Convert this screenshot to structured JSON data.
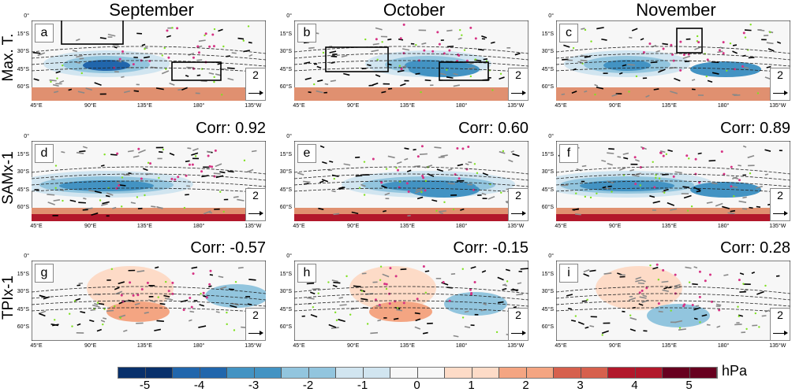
{
  "chart_data": {
    "type": "heatmap",
    "title": "",
    "columns": [
      "September",
      "October",
      "November"
    ],
    "rows": [
      "Max. T.",
      "SAMx-1",
      "TPIx-1"
    ],
    "lat_ticks": [
      "0°",
      "15°S",
      "30°S",
      "45°S",
      "60°S"
    ],
    "lon_ticks": [
      "45°E",
      "90°E",
      "135°E",
      "180°",
      "135°W"
    ],
    "panels": [
      {
        "label": "a",
        "row": "Max. T.",
        "column": "September",
        "corr": null
      },
      {
        "label": "b",
        "row": "Max. T.",
        "column": "October",
        "corr": null
      },
      {
        "label": "c",
        "row": "Max. T.",
        "column": "November",
        "corr": null
      },
      {
        "label": "d",
        "row": "SAMx-1",
        "column": "September",
        "corr": "Corr:  0.92"
      },
      {
        "label": "e",
        "row": "SAMx-1",
        "column": "October",
        "corr": "Corr:  0.60"
      },
      {
        "label": "f",
        "row": "SAMx-1",
        "column": "November",
        "corr": "Corr:  0.89"
      },
      {
        "label": "g",
        "row": "TPIx-1",
        "column": "September",
        "corr": "Corr: -0.57"
      },
      {
        "label": "h",
        "row": "TPIx-1",
        "column": "October",
        "corr": "Corr: -0.15"
      },
      {
        "label": "i",
        "row": "TPIx-1",
        "column": "November",
        "corr": "Corr:  0.28"
      }
    ],
    "reference_vector": "2",
    "colorbar": {
      "ticks": [
        "-5",
        "-4",
        "-3",
        "-2",
        "-1",
        "0",
        "1",
        "2",
        "3",
        "4",
        "5"
      ],
      "unit": "hPa",
      "colors": [
        "#08306b",
        "#08306b",
        "#2166ac",
        "#2166ac",
        "#4393c3",
        "#4393c3",
        "#92c5de",
        "#92c5de",
        "#d1e5f0",
        "#d1e5f0",
        "#f7f7f7",
        "#f7f7f7",
        "#fddbc7",
        "#fddbc7",
        "#f4a582",
        "#f4a582",
        "#d6604d",
        "#d6604d",
        "#b2182b",
        "#b2182b",
        "#67001f",
        "#67001f"
      ]
    }
  }
}
